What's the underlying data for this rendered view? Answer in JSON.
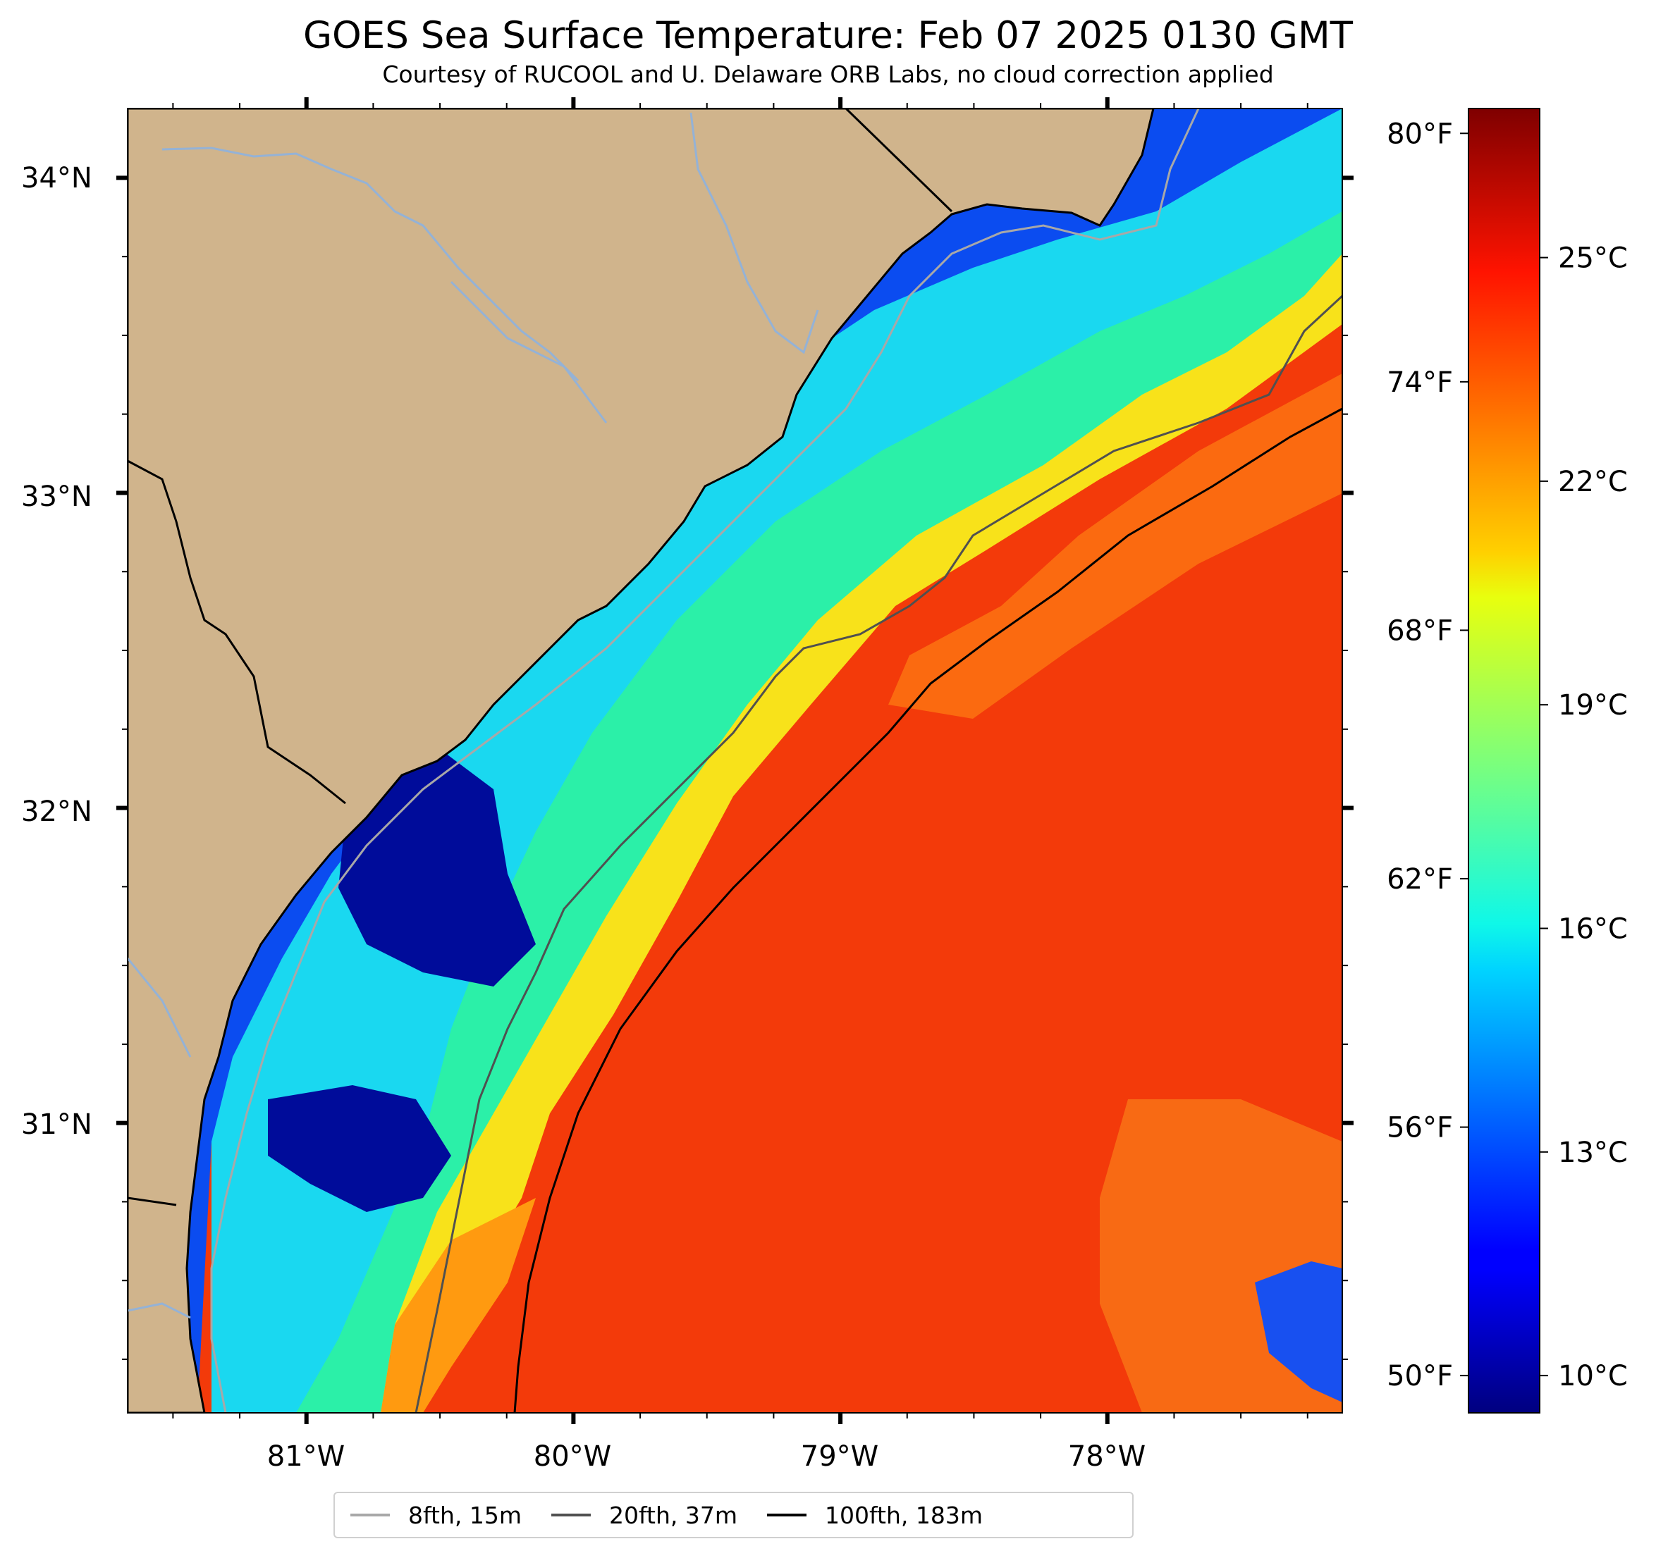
{
  "title": "GOES Sea Surface Temperature: Feb 07 2025 0130 GMT",
  "subtitle": "Courtesy of RUCOOL and U. Delaware ORB Labs, no cloud correction applied",
  "map": {
    "lon_range": [
      -81.67,
      -77.12
    ],
    "lat_range": [
      30.08,
      34.22
    ],
    "land_color": "#d0b48c",
    "river_color": "#94b2d6",
    "coast_color": "#000000",
    "lon_ticks": [
      {
        "value": -81,
        "label": "81°W"
      },
      {
        "value": -80,
        "label": "80°W"
      },
      {
        "value": -79,
        "label": "79°W"
      },
      {
        "value": -78,
        "label": "78°W"
      }
    ],
    "lat_ticks": [
      {
        "value": 34,
        "label": "34°N"
      },
      {
        "value": 33,
        "label": "33°N"
      },
      {
        "value": 32,
        "label": "32°N"
      },
      {
        "value": 31,
        "label": "31°N"
      }
    ]
  },
  "colorbar": {
    "colormap": "jet",
    "celsius_range": [
      9.5,
      27
    ],
    "celsius_ticks": [
      {
        "value": 10,
        "label": "10°C"
      },
      {
        "value": 13,
        "label": "13°C"
      },
      {
        "value": 16,
        "label": "16°C"
      },
      {
        "value": 19,
        "label": "19°C"
      },
      {
        "value": 22,
        "label": "22°C"
      },
      {
        "value": 25,
        "label": "25°C"
      }
    ],
    "fahrenheit_ticks": [
      {
        "value": 50,
        "label": "50°F"
      },
      {
        "value": 56,
        "label": "56°F"
      },
      {
        "value": 62,
        "label": "62°F"
      },
      {
        "value": 68,
        "label": "68°F"
      },
      {
        "value": 74,
        "label": "74°F"
      },
      {
        "value": 80,
        "label": "80°F"
      }
    ]
  },
  "legend": [
    {
      "label": "8fth, 15m",
      "color": "#a8a8a8"
    },
    {
      "label": "20fth, 37m",
      "color": "#505050"
    },
    {
      "label": "100fth, 183m",
      "color": "#000000"
    }
  ]
}
